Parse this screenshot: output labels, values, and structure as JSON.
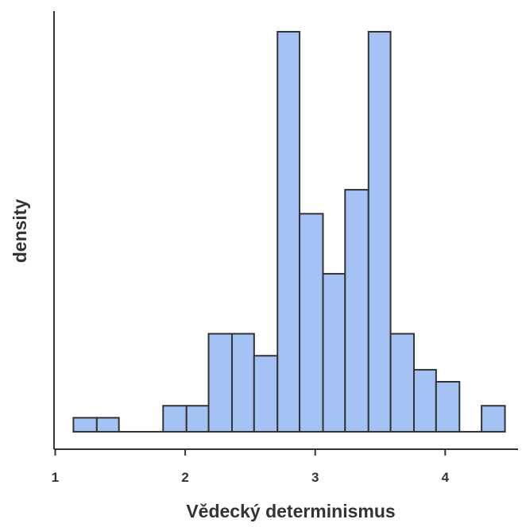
{
  "chart_data": {
    "type": "bar",
    "subtype": "histogram",
    "xlabel": "Vědecký determinismus",
    "ylabel": "density",
    "xlim": [
      1.0,
      4.5
    ],
    "ylim": [
      0,
      1.0
    ],
    "x_ticks": [
      "1",
      "2",
      "3",
      "4"
    ],
    "y_ticks_shown": false,
    "grid": false,
    "bar_color": "#a4c2f4",
    "edge_color": "#333333",
    "bins": [
      {
        "x0": 1.14,
        "x1": 1.32,
        "density": 0.035
      },
      {
        "x0": 1.32,
        "x1": 1.49,
        "density": 0.035
      },
      {
        "x0": 1.49,
        "x1": 1.66,
        "density": 0.0
      },
      {
        "x0": 1.66,
        "x1": 1.83,
        "density": 0.0
      },
      {
        "x0": 1.83,
        "x1": 2.01,
        "density": 0.065
      },
      {
        "x0": 2.01,
        "x1": 2.18,
        "density": 0.065
      },
      {
        "x0": 2.18,
        "x1": 2.36,
        "density": 0.245
      },
      {
        "x0": 2.36,
        "x1": 2.53,
        "density": 0.245
      },
      {
        "x0": 2.53,
        "x1": 2.71,
        "density": 0.19
      },
      {
        "x0": 2.71,
        "x1": 2.88,
        "density": 1.0
      },
      {
        "x0": 2.88,
        "x1": 3.06,
        "density": 0.545
      },
      {
        "x0": 3.06,
        "x1": 3.23,
        "density": 0.395
      },
      {
        "x0": 3.23,
        "x1": 3.41,
        "density": 0.605
      },
      {
        "x0": 3.41,
        "x1": 3.58,
        "density": 1.0
      },
      {
        "x0": 3.58,
        "x1": 3.76,
        "density": 0.245
      },
      {
        "x0": 3.76,
        "x1": 3.93,
        "density": 0.155
      },
      {
        "x0": 3.93,
        "x1": 4.11,
        "density": 0.125
      },
      {
        "x0": 4.11,
        "x1": 4.28,
        "density": 0.0
      },
      {
        "x0": 4.28,
        "x1": 4.46,
        "density": 0.065
      }
    ]
  }
}
